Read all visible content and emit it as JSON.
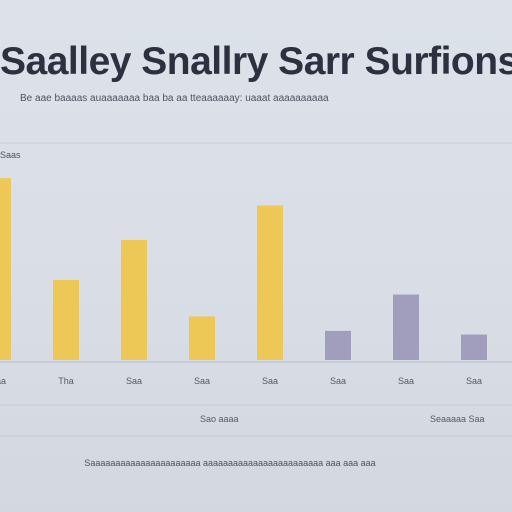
{
  "page": {
    "title": "Saalley Snallry Sarr Surfions",
    "subtitle": "Be aae baaaas auaaaaaaa baa ba aa tteaaaaaay: uaaat aaaaaaaaaa",
    "footer_center": "Sao aaaa",
    "footer_right": "Seaaaaa Saa",
    "caption": "Saaaaaaaaaaaaaaaaaaaaaa aaaaaaaaaaaaaaaaaaaaaaaa aaa aaa aaa"
  },
  "chart_data": {
    "type": "bar",
    "title": "Saalley Snallry Sarr Surfions",
    "ylabel": "Saas",
    "categories": [
      "Saa",
      "Tha",
      "Saa",
      "Saa",
      "Saa",
      "Saa",
      "Saa",
      "Saa"
    ],
    "values": [
      100,
      44,
      66,
      24,
      85,
      16,
      36,
      14
    ],
    "ylim": [
      0,
      110
    ],
    "bar_colors": [
      "#f0c64a",
      "#f0c64a",
      "#f0c64a",
      "#f0c64a",
      "#f0c64a",
      "#9c97b8",
      "#9c97b8",
      "#9c97b8"
    ],
    "grid": true,
    "gridline_color": "#c4cad4",
    "background_color": "#d9dee6"
  }
}
